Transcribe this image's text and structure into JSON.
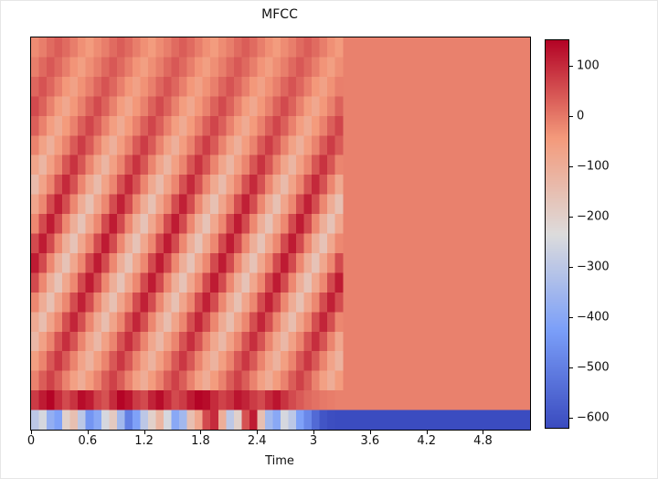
{
  "figure": {
    "title": "MFCC",
    "xlabel": "Time"
  },
  "chart_data": {
    "type": "heatmap",
    "title": "MFCC",
    "xlabel": "Time",
    "ylabel": "",
    "x_range": [
      0,
      5.3
    ],
    "x_tick_labels": [
      "0",
      "0.6",
      "1.2",
      "1.8",
      "2.4",
      "3",
      "3.6",
      "4.2",
      "4.8"
    ],
    "x_tick_values": [
      0,
      0.6,
      1.2,
      1.8,
      2.4,
      3,
      3.6,
      4.2,
      4.8
    ],
    "colorbar": {
      "vmin": -620,
      "vmax": 150,
      "colormap": "coolwarm",
      "tick_labels": [
        "100",
        "0",
        "−100",
        "−200",
        "−300",
        "−400",
        "−500",
        "−600"
      ],
      "tick_values": [
        100,
        0,
        -100,
        -200,
        -300,
        -400,
        -500,
        -600
      ],
      "colormap_stops": [
        {
          "pos": 0.0,
          "color": "#3b4cc0"
        },
        {
          "pos": 0.25,
          "color": "#7b9ff9"
        },
        {
          "pos": 0.5,
          "color": "#dddcdc"
        },
        {
          "pos": 0.75,
          "color": "#f49a7b"
        },
        {
          "pos": 1.0,
          "color": "#b40426"
        }
      ]
    },
    "n_mfcc": 20,
    "n_frames": 64,
    "row_order": "top-to-bottom",
    "speech_end_time": 3.2,
    "matrix": [
      [
        -24,
        -6,
        18,
        36,
        18,
        -6,
        -30,
        -48,
        -24,
        -6,
        18,
        36,
        18,
        -6,
        -30,
        -48,
        -24,
        -6,
        18,
        36,
        18,
        -6,
        -30,
        -48,
        -24,
        -6,
        18,
        36,
        18,
        -6,
        -30,
        -48,
        -24,
        -6,
        18,
        36,
        18,
        -6,
        -30,
        -48,
        -10,
        -10,
        -10,
        -10,
        -10,
        -10,
        -10,
        -10,
        -10,
        -10,
        -10,
        -10,
        -10,
        -10,
        -10,
        -10,
        -10,
        -10,
        -10,
        -10,
        -10,
        -10,
        -10,
        -10
      ],
      [
        -7,
        21,
        42,
        21,
        -7,
        -35,
        -56,
        -28,
        -7,
        21,
        42,
        21,
        -7,
        -35,
        -56,
        -28,
        -7,
        21,
        42,
        21,
        -7,
        -35,
        -56,
        -28,
        -7,
        21,
        42,
        21,
        -7,
        -35,
        -56,
        -28,
        -7,
        21,
        42,
        21,
        -7,
        -35,
        -56,
        -28,
        -10,
        -10,
        -10,
        -10,
        -10,
        -10,
        -10,
        -10,
        -10,
        -10,
        -10,
        -10,
        -10,
        -10,
        -10,
        -10,
        -10,
        -10,
        -10,
        -10,
        -10,
        -10,
        -10,
        -10
      ],
      [
        24,
        48,
        24,
        -8,
        -40,
        -64,
        -32,
        -8,
        24,
        48,
        24,
        -8,
        -40,
        -64,
        -32,
        -8,
        24,
        48,
        24,
        -8,
        -40,
        -64,
        -32,
        -8,
        24,
        48,
        24,
        -8,
        -40,
        -64,
        -32,
        -8,
        24,
        48,
        24,
        -8,
        -40,
        -64,
        -32,
        -8,
        -10,
        -10,
        -10,
        -10,
        -10,
        -10,
        -10,
        -10,
        -10,
        -10,
        -10,
        -10,
        -10,
        -10,
        -10,
        -10,
        -10,
        -10,
        -10,
        -10,
        -10,
        -10,
        -10,
        -10
      ],
      [
        60,
        30,
        -10,
        -50,
        -80,
        -40,
        -10,
        30,
        60,
        30,
        -10,
        -50,
        -80,
        -40,
        -10,
        30,
        60,
        30,
        -10,
        -50,
        -80,
        -40,
        -10,
        30,
        60,
        30,
        -10,
        -50,
        -80,
        -40,
        -10,
        30,
        60,
        30,
        -10,
        -50,
        -80,
        -40,
        -10,
        30,
        -10,
        -10,
        -10,
        -10,
        -10,
        -10,
        -10,
        -10,
        -10,
        -10,
        -10,
        -10,
        -10,
        -10,
        -10,
        -10,
        -10,
        -10,
        -10,
        -10,
        -10,
        -10,
        -10,
        -10
      ],
      [
        33,
        -11,
        -55,
        -88,
        -44,
        -11,
        33,
        66,
        33,
        -11,
        -55,
        -88,
        -44,
        -11,
        33,
        66,
        33,
        -11,
        -55,
        -88,
        -44,
        -11,
        33,
        66,
        33,
        -11,
        -55,
        -88,
        -44,
        -11,
        33,
        66,
        33,
        -11,
        -55,
        -88,
        -44,
        -11,
        33,
        66,
        -10,
        -10,
        -10,
        -10,
        -10,
        -10,
        -10,
        -10,
        -10,
        -10,
        -10,
        -10,
        -10,
        -10,
        -10,
        -10,
        -10,
        -10,
        -10,
        -10,
        -10,
        -10,
        -10,
        -10
      ],
      [
        -13,
        -65,
        -104,
        -52,
        -13,
        39,
        78,
        39,
        -13,
        -65,
        -104,
        -52,
        -13,
        39,
        78,
        39,
        -13,
        -65,
        -104,
        -52,
        -13,
        39,
        78,
        39,
        -13,
        -65,
        -104,
        -52,
        -13,
        39,
        78,
        39,
        -13,
        -65,
        -104,
        -52,
        -13,
        39,
        78,
        39,
        -10,
        -10,
        -10,
        -10,
        -10,
        -10,
        -10,
        -10,
        -10,
        -10,
        -10,
        -10,
        -10,
        -10,
        -10,
        -10,
        -10,
        -10,
        -10,
        -10,
        -10,
        -10,
        -10,
        -10
      ],
      [
        -75,
        -120,
        -60,
        -15,
        45,
        90,
        45,
        -15,
        -75,
        -120,
        -60,
        -15,
        45,
        90,
        45,
        -15,
        -75,
        -120,
        -60,
        -15,
        45,
        90,
        45,
        -15,
        -75,
        -120,
        -60,
        -15,
        45,
        90,
        45,
        -15,
        -75,
        -120,
        -60,
        -15,
        45,
        90,
        45,
        -15,
        -10,
        -10,
        -10,
        -10,
        -10,
        -10,
        -10,
        -10,
        -10,
        -10,
        -10,
        -10,
        -10,
        -10,
        -10,
        -10,
        -10,
        -10,
        -10,
        -10,
        -10,
        -10,
        -10,
        -10
      ],
      [
        -136,
        -68,
        -17,
        51,
        102,
        51,
        -17,
        -85,
        -136,
        -68,
        -17,
        51,
        102,
        51,
        -17,
        -85,
        -136,
        -68,
        -17,
        51,
        102,
        51,
        -17,
        -85,
        -136,
        -68,
        -17,
        51,
        102,
        51,
        -17,
        -85,
        -136,
        -68,
        -17,
        51,
        102,
        51,
        -17,
        -85,
        -10,
        -10,
        -10,
        -10,
        -10,
        -10,
        -10,
        -10,
        -10,
        -10,
        -10,
        -10,
        -10,
        -10,
        -10,
        -10,
        -10,
        -10,
        -10,
        -10,
        -10,
        -10,
        -10,
        -10
      ],
      [
        -76,
        -19,
        57,
        114,
        57,
        -19,
        -95,
        -152,
        -76,
        -19,
        57,
        114,
        57,
        -19,
        -95,
        -152,
        -76,
        -19,
        57,
        114,
        57,
        -19,
        -95,
        -152,
        -76,
        -19,
        57,
        114,
        57,
        -19,
        -95,
        -152,
        -76,
        -19,
        57,
        114,
        57,
        -19,
        -95,
        -152,
        -10,
        -10,
        -10,
        -10,
        -10,
        -10,
        -10,
        -10,
        -10,
        -10,
        -10,
        -10,
        -10,
        -10,
        -10,
        -10,
        -10,
        -10,
        -10,
        -10,
        -10,
        -10,
        -10,
        -10
      ],
      [
        -20,
        60,
        120,
        60,
        -20,
        -100,
        -160,
        -80,
        -20,
        60,
        120,
        60,
        -20,
        -100,
        -160,
        -80,
        -20,
        60,
        120,
        60,
        -20,
        -100,
        -160,
        -80,
        -20,
        60,
        120,
        60,
        -20,
        -100,
        -160,
        -80,
        -20,
        60,
        120,
        60,
        -20,
        -100,
        -160,
        -80,
        -10,
        -10,
        -10,
        -10,
        -10,
        -10,
        -10,
        -10,
        -10,
        -10,
        -10,
        -10,
        -10,
        -10,
        -10,
        -10,
        -10,
        -10,
        -10,
        -10,
        -10,
        -10,
        -10,
        -10
      ],
      [
        60,
        120,
        60,
        -20,
        -100,
        -160,
        -80,
        -20,
        60,
        120,
        60,
        -20,
        -100,
        -160,
        -80,
        -20,
        60,
        120,
        60,
        -20,
        -100,
        -160,
        -80,
        -20,
        60,
        120,
        60,
        -20,
        -100,
        -160,
        -80,
        -20,
        60,
        120,
        60,
        -20,
        -100,
        -160,
        -80,
        -20,
        -10,
        -10,
        -10,
        -10,
        -10,
        -10,
        -10,
        -10,
        -10,
        -10,
        -10,
        -10,
        -10,
        -10,
        -10,
        -10,
        -10,
        -10,
        -10,
        -10,
        -10,
        -10,
        -10,
        -10
      ],
      [
        120,
        60,
        -20,
        -100,
        -160,
        -80,
        -20,
        60,
        120,
        60,
        -20,
        -100,
        -160,
        -80,
        -20,
        60,
        120,
        60,
        -20,
        -100,
        -160,
        -80,
        -20,
        60,
        120,
        60,
        -20,
        -100,
        -160,
        -80,
        -20,
        60,
        120,
        60,
        -20,
        -100,
        -160,
        -80,
        -20,
        60,
        -10,
        -10,
        -10,
        -10,
        -10,
        -10,
        -10,
        -10,
        -10,
        -10,
        -10,
        -10,
        -10,
        -10,
        -10,
        -10,
        -10,
        -10,
        -10,
        -10,
        -10,
        -10,
        -10,
        -10
      ],
      [
        60,
        -20,
        -100,
        -160,
        -80,
        -20,
        60,
        120,
        60,
        -20,
        -100,
        -160,
        -80,
        -20,
        60,
        120,
        60,
        -20,
        -100,
        -160,
        -80,
        -20,
        60,
        120,
        60,
        -20,
        -100,
        -160,
        -80,
        -20,
        60,
        120,
        60,
        -20,
        -100,
        -160,
        -80,
        -20,
        60,
        120,
        -10,
        -10,
        -10,
        -10,
        -10,
        -10,
        -10,
        -10,
        -10,
        -10,
        -10,
        -10,
        -10,
        -10,
        -10,
        -10,
        -10,
        -10,
        -10,
        -10,
        -10,
        -10,
        -10,
        -10
      ],
      [
        -19,
        -95,
        -152,
        -76,
        -19,
        57,
        114,
        57,
        -19,
        -95,
        -152,
        -76,
        -19,
        57,
        114,
        57,
        -19,
        -95,
        -152,
        -76,
        -19,
        57,
        114,
        57,
        -19,
        -95,
        -152,
        -76,
        -19,
        57,
        114,
        57,
        -19,
        -95,
        -152,
        -76,
        -19,
        57,
        114,
        57,
        -10,
        -10,
        -10,
        -10,
        -10,
        -10,
        -10,
        -10,
        -10,
        -10,
        -10,
        -10,
        -10,
        -10,
        -10,
        -10,
        -10,
        -10,
        -10,
        -10,
        -10,
        -10,
        -10,
        -10
      ],
      [
        -90,
        -144,
        -72,
        -18,
        54,
        108,
        54,
        -18,
        -90,
        -144,
        -72,
        -18,
        54,
        108,
        54,
        -18,
        -90,
        -144,
        -72,
        -18,
        54,
        108,
        54,
        -18,
        -90,
        -144,
        -72,
        -18,
        54,
        108,
        54,
        -18,
        -90,
        -144,
        -72,
        -18,
        54,
        108,
        54,
        -18,
        -10,
        -10,
        -10,
        -10,
        -10,
        -10,
        -10,
        -10,
        -10,
        -10,
        -10,
        -10,
        -10,
        -10,
        -10,
        -10,
        -10,
        -10,
        -10,
        -10,
        -10,
        -10,
        -10,
        -10
      ],
      [
        -128,
        -64,
        -16,
        48,
        96,
        48,
        -16,
        -80,
        -128,
        -64,
        -16,
        48,
        96,
        48,
        -16,
        -80,
        -128,
        -64,
        -16,
        48,
        96,
        48,
        -16,
        -80,
        -128,
        -64,
        -16,
        48,
        96,
        48,
        -16,
        -80,
        -128,
        -64,
        -16,
        48,
        96,
        48,
        -16,
        -80,
        -10,
        -10,
        -10,
        -10,
        -10,
        -10,
        -10,
        -10,
        -10,
        -10,
        -10,
        -10,
        -10,
        -10,
        -10,
        -10,
        -10,
        -10,
        -10,
        -10,
        -10,
        -10,
        -10,
        -10
      ],
      [
        -56,
        -14,
        42,
        84,
        42,
        -14,
        -70,
        -112,
        -56,
        -14,
        42,
        84,
        42,
        -14,
        -70,
        -112,
        -56,
        -14,
        42,
        84,
        42,
        -14,
        -70,
        -112,
        -56,
        -14,
        42,
        84,
        42,
        -14,
        -70,
        -112,
        -56,
        -14,
        42,
        84,
        42,
        -14,
        -70,
        -112,
        -10,
        -10,
        -10,
        -10,
        -10,
        -10,
        -10,
        -10,
        -10,
        -10,
        -10,
        -10,
        -10,
        -10,
        -10,
        -10,
        -10,
        -10,
        -10,
        -10,
        -10,
        -10,
        -10,
        -10
      ],
      [
        -12,
        36,
        72,
        36,
        -12,
        -60,
        -96,
        -48,
        -12,
        36,
        72,
        36,
        -12,
        -60,
        -96,
        -48,
        -12,
        36,
        72,
        36,
        -12,
        -60,
        -96,
        -48,
        -12,
        36,
        72,
        36,
        -12,
        -60,
        -96,
        -48,
        -12,
        36,
        72,
        36,
        -12,
        -60,
        -96,
        -48,
        -10,
        -10,
        -10,
        -10,
        -10,
        -10,
        -10,
        -10,
        -10,
        -10,
        -10,
        -10,
        -10,
        -10,
        -10,
        -10,
        -10,
        -10,
        -10,
        -10,
        -10,
        -10,
        -10,
        -10
      ],
      [
        80,
        120,
        150,
        100,
        60,
        90,
        140,
        120,
        70,
        50,
        100,
        150,
        130,
        80,
        60,
        110,
        140,
        100,
        60,
        80,
        120,
        150,
        140,
        100,
        70,
        90,
        130,
        110,
        80,
        60,
        100,
        130,
        90,
        60,
        40,
        20,
        10,
        0,
        -5,
        -10,
        -10,
        -10,
        -10,
        -10,
        -10,
        -10,
        -10,
        -10,
        -10,
        -10,
        -10,
        -10,
        -10,
        -10,
        -10,
        -10,
        -10,
        -10,
        -10,
        -10,
        -10,
        -10,
        -10,
        -10
      ],
      [
        -300,
        -250,
        -380,
        -420,
        -200,
        -150,
        -300,
        -450,
        -400,
        -250,
        -180,
        -350,
        -500,
        -420,
        -300,
        -200,
        -120,
        -250,
        -400,
        -350,
        -150,
        -80,
        60,
        100,
        -100,
        -300,
        -200,
        50,
        120,
        -150,
        -350,
        -400,
        -250,
        -300,
        -420,
        -480,
        -550,
        -600,
        -615,
        -620,
        -620,
        -620,
        -620,
        -620,
        -620,
        -620,
        -620,
        -620,
        -620,
        -620,
        -620,
        -620,
        -620,
        -620,
        -620,
        -620,
        -620,
        -620,
        -620,
        -620,
        -620,
        -620,
        -620,
        -620
      ]
    ]
  }
}
